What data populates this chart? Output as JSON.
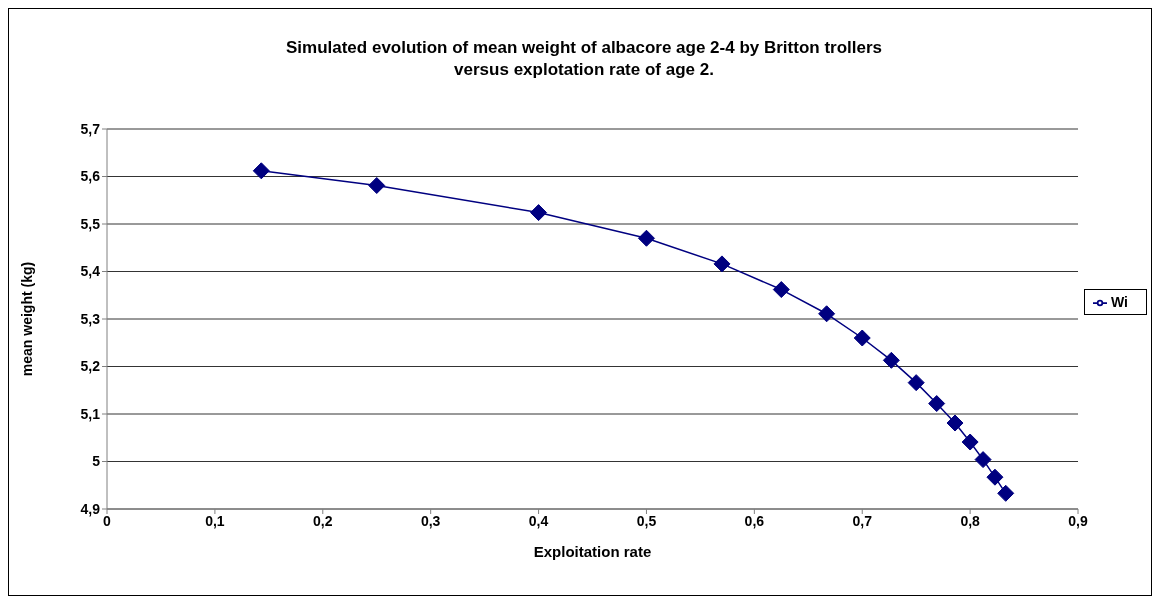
{
  "chart_data": {
    "type": "line",
    "title": "Simulated evolution of mean weight of albacore age 2-4 by Britton trollers\nversus explotation rate of age 2.",
    "xlabel": "Exploitation rate",
    "ylabel": "mean weight (kg)",
    "x": [
      0.143,
      0.25,
      0.4,
      0.5,
      0.57,
      0.625,
      0.667,
      0.7,
      0.727,
      0.75,
      0.769,
      0.786,
      0.8,
      0.812,
      0.823,
      0.833
    ],
    "series": [
      {
        "name": "Wi",
        "color": "#000080",
        "values": [
          5.612,
          5.581,
          5.524,
          5.47,
          5.416,
          5.362,
          5.311,
          5.26,
          5.213,
          5.166,
          5.122,
          5.081,
          5.041,
          5.004,
          4.967,
          4.933
        ]
      }
    ],
    "xlim": [
      0,
      0.9
    ],
    "xticks": [
      {
        "value": 0,
        "label": "0"
      },
      {
        "value": 0.1,
        "label": "0,1"
      },
      {
        "value": 0.2,
        "label": "0,2"
      },
      {
        "value": 0.3,
        "label": "0,3"
      },
      {
        "value": 0.4,
        "label": "0,4"
      },
      {
        "value": 0.5,
        "label": "0,5"
      },
      {
        "value": 0.6,
        "label": "0,6"
      },
      {
        "value": 0.7,
        "label": "0,7"
      },
      {
        "value": 0.8,
        "label": "0,8"
      },
      {
        "value": 0.9,
        "label": "0,9"
      }
    ],
    "ylim": [
      4.9,
      5.7
    ],
    "yticks": [
      {
        "value": 4.9,
        "label": "4,9"
      },
      {
        "value": 5,
        "label": "5"
      },
      {
        "value": 5.1,
        "label": "5,1"
      },
      {
        "value": 5.2,
        "label": "5,2"
      },
      {
        "value": 5.3,
        "label": "5,3"
      },
      {
        "value": 5.4,
        "label": "5,4"
      },
      {
        "value": 5.5,
        "label": "5,5"
      },
      {
        "value": 5.6,
        "label": "5,6"
      },
      {
        "value": 5.7,
        "label": "5,7"
      }
    ],
    "grid": "y",
    "legend": "right",
    "marker": "diamond",
    "line_style": "solid"
  }
}
